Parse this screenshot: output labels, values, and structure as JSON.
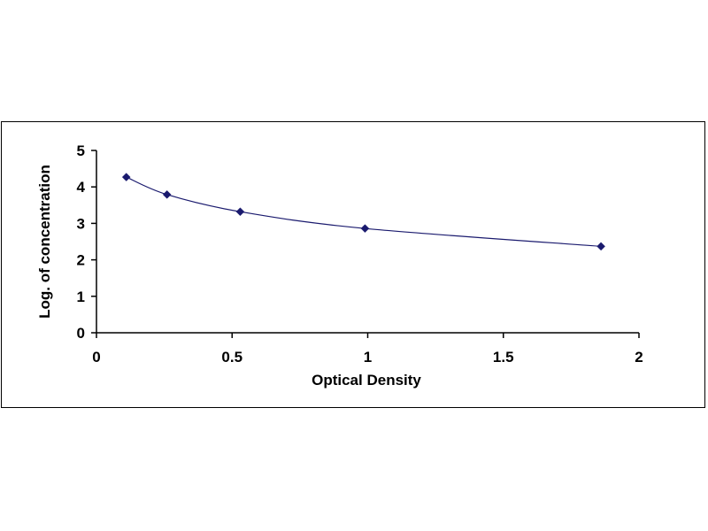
{
  "chart_data": {
    "type": "scatter",
    "title": "",
    "xlabel": "Optical Density",
    "ylabel": "Log. of concentration",
    "xlim": [
      0,
      2
    ],
    "ylim": [
      0,
      5
    ],
    "xticks": [
      "0",
      "0.5",
      "1",
      "1.5",
      "2"
    ],
    "yticks": [
      "0",
      "1",
      "2",
      "3",
      "4",
      "5"
    ],
    "grid": false,
    "legend": "none",
    "series": [
      {
        "points": [
          {
            "x": 0.11,
            "y": 4.27
          },
          {
            "x": 0.26,
            "y": 3.79
          },
          {
            "x": 0.53,
            "y": 3.32
          },
          {
            "x": 0.99,
            "y": 2.86
          },
          {
            "x": 1.86,
            "y": 2.37
          }
        ],
        "marker": "diamond",
        "trendline": "smooth curve",
        "color": "#1a1a6e"
      }
    ]
  }
}
